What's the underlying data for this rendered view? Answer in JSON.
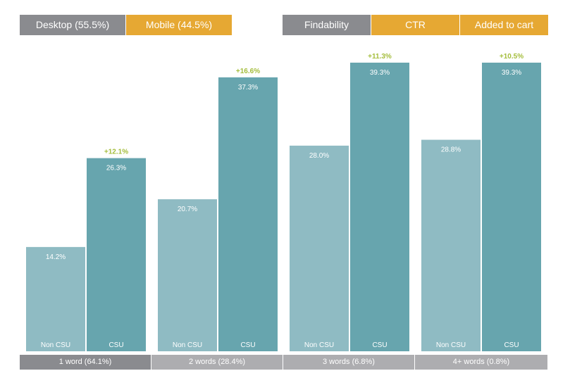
{
  "device_tabs": [
    {
      "label": "Desktop (55.5%)",
      "active": true
    },
    {
      "label": "Mobile (44.5%)",
      "active": false
    }
  ],
  "metric_tabs": [
    {
      "label": "Findability",
      "active": true
    },
    {
      "label": "CTR",
      "active": false
    },
    {
      "label": "Added to cart",
      "active": false
    }
  ],
  "colors": {
    "tab_active": "#8a8b8f",
    "tab_inactive": "#e6a833",
    "non_csu": "#8fbbc3",
    "csu": "#67a5ae",
    "uplift": "#a4bd3c",
    "footer_active": "#8a8b8f",
    "footer_inactive": "#adadb0"
  },
  "chart_data": {
    "type": "bar",
    "categories": [
      "1 word (64.1%)",
      "2 words (28.4%)",
      "3 words (6.8%)",
      "4+ words (0.8%)"
    ],
    "series": [
      {
        "name": "Non CSU",
        "values": [
          14.2,
          20.7,
          28.0,
          28.8
        ],
        "labels": [
          "14.2%",
          "20.7%",
          "28.0%",
          "28.8%"
        ]
      },
      {
        "name": "CSU",
        "values": [
          26.3,
          37.3,
          39.3,
          39.3
        ],
        "labels": [
          "26.3%",
          "37.3%",
          "39.3%",
          "39.3%"
        ]
      }
    ],
    "uplift_labels": [
      "+12.1%",
      "+16.6%",
      "+11.3%",
      "+10.5%"
    ],
    "bar_labels": [
      "Non CSU",
      "CSU"
    ],
    "ylim": [
      0,
      40
    ],
    "grid": false,
    "active_category": 0
  }
}
